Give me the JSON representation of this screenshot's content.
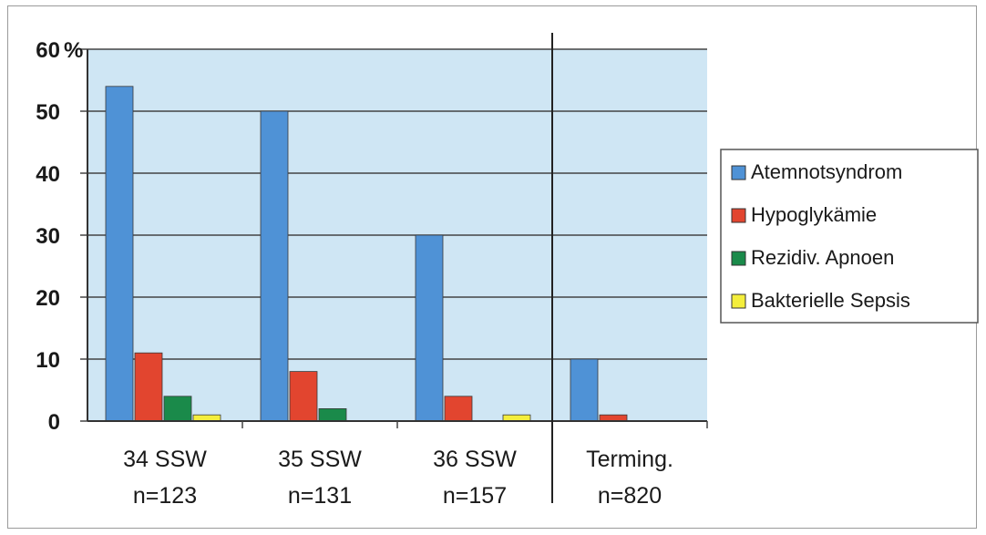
{
  "chart_data": {
    "type": "bar",
    "y_unit_label": "%",
    "ylim": [
      0,
      60
    ],
    "y_ticks": [
      "0",
      "10",
      "20",
      "30",
      "40",
      "50",
      "60"
    ],
    "categories": [
      {
        "line1": "34 SSW",
        "line2": "n=123"
      },
      {
        "line1": "35 SSW",
        "line2": "n=131"
      },
      {
        "line1": "36 SSW",
        "line2": "n=157"
      },
      {
        "line1": "Terming.",
        "line2": "n=820"
      }
    ],
    "series": [
      {
        "name": "Atemnotsyndrom",
        "color": "#4f92d6",
        "values": [
          54,
          50,
          30,
          10
        ]
      },
      {
        "name": "Hypoglykämie",
        "color": "#e2452f",
        "values": [
          11,
          8,
          4,
          1
        ]
      },
      {
        "name": "Rezidiv. Apnoen",
        "color": "#1a8a4a",
        "values": [
          4,
          2,
          0,
          0
        ]
      },
      {
        "name": "Bakterielle Sepsis",
        "color": "#f4ee3c",
        "values": [
          1,
          0,
          1,
          0
        ]
      }
    ],
    "grid": true,
    "legend_position": "right",
    "plot_background": "#cfe6f4"
  }
}
